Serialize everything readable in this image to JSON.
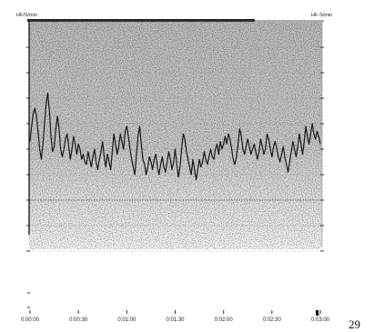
{
  "chart_data": {
    "type": "line",
    "left_unit_label": "HF/S/min",
    "right_unit_label": "HF-S/min",
    "x_tick_labels": [
      "0:00:00",
      "0:00:30",
      "0:01:00",
      "0:01:30",
      "0:02:00",
      "0:02:30",
      "0:03:00"
    ],
    "xlim": [
      0,
      180
    ],
    "ylim": [
      0,
      10
    ],
    "x_unit": "seconds",
    "grid": true,
    "series": [
      {
        "color": "#1a1a1a",
        "x": [
          0,
          1,
          2,
          3,
          4,
          5,
          6,
          7,
          8,
          9,
          10,
          11,
          12,
          13,
          14,
          15,
          16,
          17,
          18,
          19,
          20,
          21,
          22,
          23,
          24,
          25,
          26,
          27,
          28,
          29,
          30,
          31,
          32,
          33,
          34,
          35,
          36,
          37,
          38,
          39,
          40,
          41,
          42,
          43,
          44,
          45,
          46,
          47,
          48,
          49,
          50,
          51,
          52,
          53,
          54,
          55,
          56,
          57,
          58,
          59,
          60,
          61,
          62,
          63,
          64,
          65,
          66,
          67,
          68,
          69,
          70,
          71,
          72,
          73,
          74,
          75,
          76,
          77,
          78,
          79,
          80,
          81,
          82,
          83,
          84,
          85,
          86,
          87,
          88,
          89,
          90,
          91,
          92,
          93,
          94,
          95,
          96,
          97,
          98,
          99,
          100,
          101,
          102,
          103,
          104,
          105,
          106,
          107,
          108,
          109,
          110,
          111,
          112,
          113,
          114,
          115,
          116,
          117,
          118,
          119,
          120,
          121,
          122,
          123,
          124,
          125,
          126,
          127,
          128,
          129,
          130,
          131,
          132,
          133,
          134,
          135,
          136,
          137,
          138,
          139,
          140,
          141,
          142,
          143,
          144,
          145,
          146,
          147,
          148,
          149,
          150,
          151,
          152,
          153,
          154,
          155,
          156,
          157,
          158,
          159,
          160,
          161,
          162,
          163,
          164,
          165,
          166,
          167,
          168,
          169,
          170,
          171,
          172,
          173,
          174,
          175,
          176,
          177,
          178,
          179,
          180
        ],
        "y": [
          5.3,
          5.9,
          6.4,
          6.6,
          6.3,
          5.7,
          5.0,
          4.6,
          5.2,
          6.0,
          6.8,
          7.2,
          6.5,
          5.5,
          4.9,
          5.1,
          5.8,
          6.3,
          5.8,
          5.0,
          4.7,
          5.0,
          5.4,
          5.6,
          5.1,
          4.6,
          5.0,
          5.5,
          5.2,
          4.8,
          5.2,
          5.0,
          4.6,
          4.8,
          4.5,
          4.4,
          4.9,
          4.6,
          4.3,
          4.7,
          5.0,
          4.5,
          4.2,
          4.6,
          4.9,
          5.3,
          4.7,
          4.3,
          4.8,
          4.5,
          4.2,
          4.9,
          5.6,
          5.2,
          4.8,
          5.1,
          5.6,
          5.3,
          5.0,
          5.7,
          5.9,
          5.5,
          5.0,
          4.6,
          4.3,
          4.0,
          4.8,
          5.5,
          5.9,
          5.2,
          4.6,
          4.4,
          4.0,
          4.3,
          4.7,
          4.5,
          4.2,
          4.6,
          4.8,
          4.3,
          4.0,
          4.4,
          4.7,
          4.3,
          4.1,
          4.5,
          4.9,
          4.6,
          4.2,
          4.5,
          5.0,
          4.4,
          3.9,
          4.3,
          5.0,
          5.6,
          5.4,
          4.9,
          4.6,
          4.3,
          4.0,
          4.6,
          4.2,
          3.8,
          4.2,
          4.6,
          4.3,
          4.5,
          4.9,
          4.6,
          4.4,
          4.7,
          5.0,
          4.7,
          4.6,
          5.0,
          5.2,
          4.8,
          5.3,
          5.0,
          5.2,
          5.5,
          5.2,
          5.6,
          5.4,
          5.0,
          4.6,
          4.4,
          4.7,
          5.2,
          5.8,
          5.5,
          5.0,
          4.8,
          5.1,
          5.4,
          5.1,
          4.8,
          5.0,
          5.2,
          4.9,
          4.6,
          4.9,
          5.4,
          5.1,
          4.8,
          5.0,
          5.6,
          5.4,
          5.0,
          4.7,
          5.1,
          5.3,
          5.0,
          4.7,
          4.5,
          4.8,
          5.1,
          4.7,
          4.4,
          4.1,
          4.5,
          4.9,
          5.3,
          5.0,
          4.7,
          5.1,
          5.6,
          5.2,
          4.8,
          5.3,
          5.9,
          5.5,
          5.2,
          5.6,
          6.0,
          5.6,
          5.4,
          5.7,
          5.5,
          5.2
        ]
      }
    ]
  }
}
